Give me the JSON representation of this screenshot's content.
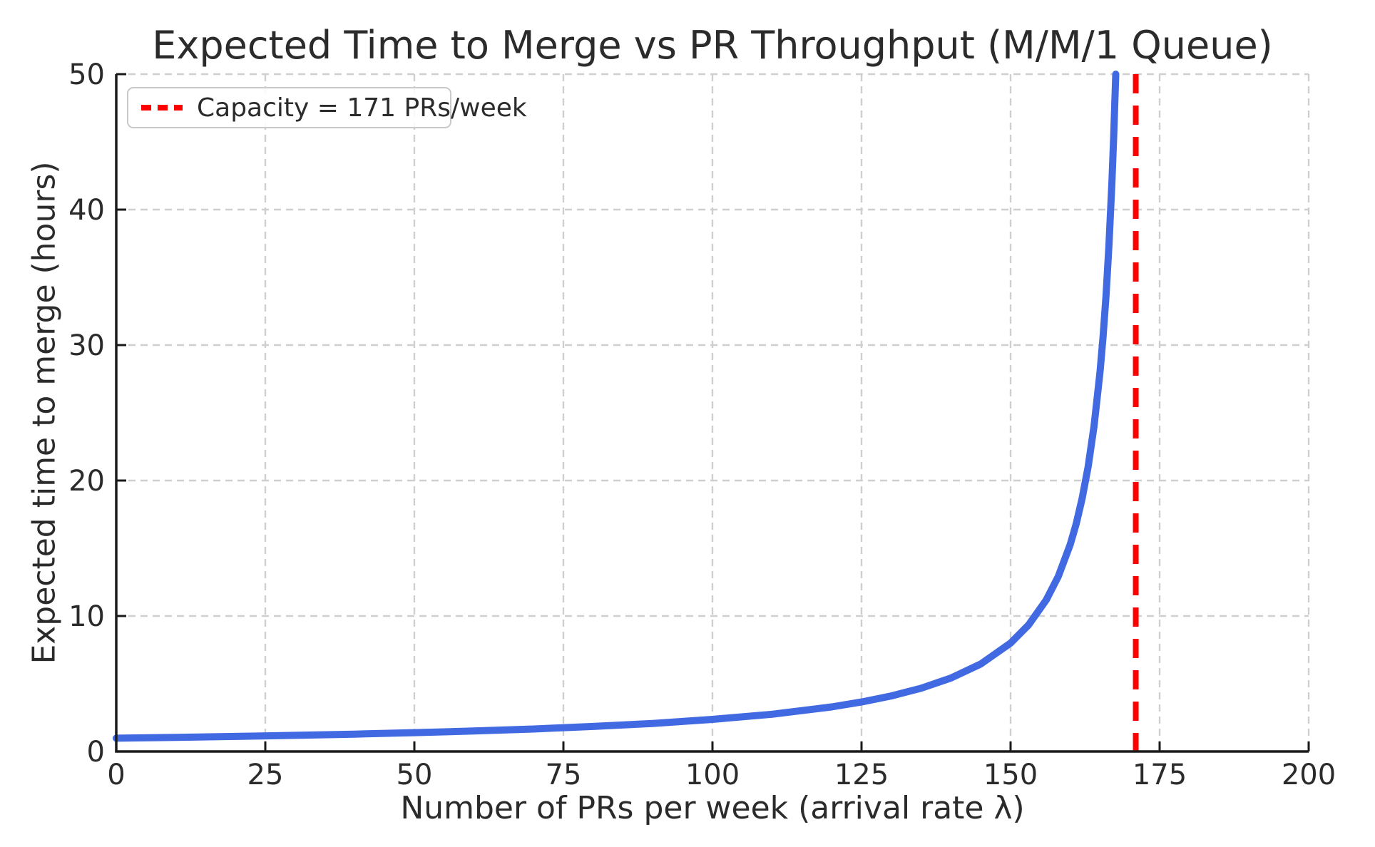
{
  "accent_colors": {
    "curve_blue": "#4169e1",
    "capacity_red": "#ff0000",
    "grid_gray": "#cfcfcf",
    "spine_black": "#1a1a1a",
    "text_dark": "#2b2b2b"
  },
  "legend": {
    "capacity_label": "Capacity = 171 PRs/week",
    "position": "upper-left"
  },
  "chart_data": {
    "type": "line",
    "title": "Expected Time to Merge vs PR Throughput (M/M/1 Queue)",
    "xlabel": "Number of PRs per week (arrival rate λ)",
    "ylabel": "Expected time to merge (hours)",
    "xlim": [
      0,
      200
    ],
    "ylim": [
      0,
      50
    ],
    "xticks": [
      0,
      25,
      50,
      75,
      100,
      125,
      150,
      175,
      200
    ],
    "yticks": [
      0,
      10,
      20,
      30,
      40,
      50
    ],
    "grid": "dashed",
    "legend_position": "upper left",
    "series": [
      {
        "name": "expected-time-to-merge",
        "color": "#4169e1",
        "style": "solid",
        "x": [
          0,
          10,
          20,
          30,
          40,
          50,
          60,
          70,
          80,
          90,
          100,
          110,
          120,
          125,
          130,
          135,
          140,
          145,
          150,
          153,
          156,
          158,
          160,
          161,
          162,
          163,
          164,
          165,
          165.5,
          166,
          166.5,
          167,
          167.3,
          167.64
        ],
        "y": [
          0.98,
          1.04,
          1.11,
          1.19,
          1.28,
          1.39,
          1.51,
          1.66,
          1.85,
          2.07,
          2.37,
          2.75,
          3.29,
          3.65,
          4.1,
          4.67,
          5.42,
          6.46,
          8.0,
          9.33,
          11.2,
          12.92,
          15.27,
          16.8,
          18.67,
          21.0,
          24.0,
          28.0,
          30.55,
          33.6,
          37.33,
          42.0,
          45.41,
          50.0
        ]
      }
    ],
    "vline": {
      "x": 171,
      "label": "Capacity = 171 PRs/week",
      "color": "#ff0000",
      "style": "dashed"
    }
  }
}
